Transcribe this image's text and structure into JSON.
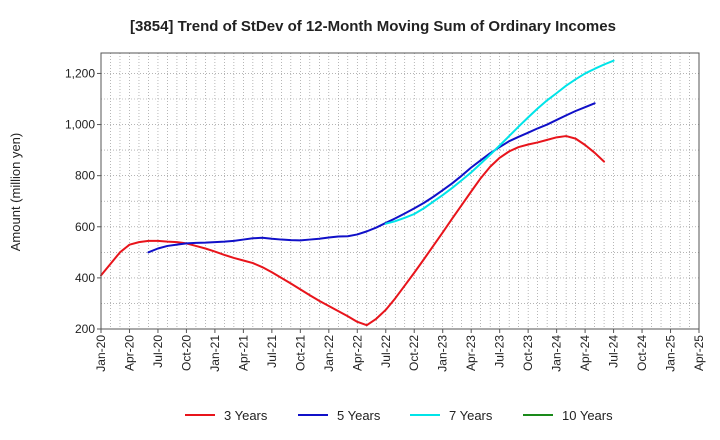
{
  "chart_data": {
    "type": "line",
    "title": "[3854]  Trend of StDev of 12-Month Moving Sum of Ordinary Incomes",
    "xlabel": "",
    "ylabel": "Amount (million yen)",
    "ylim": [
      200,
      1280
    ],
    "yticks": [
      200,
      400,
      600,
      800,
      "1,000",
      "1,200"
    ],
    "ytick_values": [
      200,
      400,
      600,
      800,
      1000,
      1200
    ],
    "x_start": "Jan-20",
    "x_end": "Apr-25",
    "x_months_span": 63,
    "xtick_labels": [
      "Jan-20",
      "Apr-20",
      "Jul-20",
      "Oct-20",
      "Jan-21",
      "Apr-21",
      "Jul-21",
      "Oct-21",
      "Jan-22",
      "Apr-22",
      "Jul-22",
      "Oct-22",
      "Jan-23",
      "Apr-23",
      "Jul-23",
      "Oct-23",
      "Jan-24",
      "Apr-24",
      "Jul-24",
      "Oct-24",
      "Jan-25",
      "Apr-25"
    ],
    "grid": true,
    "legend_position": "bottom",
    "series": [
      {
        "name": "3 Years",
        "color": "#e8141b",
        "start_month": 0,
        "values": [
          410,
          455,
          500,
          530,
          540,
          545,
          545,
          542,
          540,
          535,
          525,
          515,
          503,
          490,
          478,
          468,
          458,
          442,
          422,
          400,
          378,
          355,
          332,
          310,
          290,
          270,
          250,
          228,
          215,
          240,
          275,
          320,
          370,
          420,
          472,
          525,
          578,
          632,
          685,
          738,
          790,
          835,
          870,
          895,
          912,
          922,
          930,
          940,
          950,
          955,
          945,
          920,
          890,
          855
        ]
      },
      {
        "name": "5 Years",
        "color": "#1010c8",
        "start_month": 5,
        "values": [
          500,
          515,
          525,
          530,
          535,
          537,
          538,
          540,
          542,
          545,
          550,
          555,
          557,
          553,
          550,
          548,
          547,
          550,
          553,
          558,
          562,
          563,
          570,
          582,
          597,
          615,
          633,
          652,
          672,
          693,
          717,
          743,
          770,
          800,
          832,
          860,
          888,
          912,
          935,
          952,
          968,
          985,
          1000,
          1018,
          1036,
          1053,
          1068,
          1083
        ]
      },
      {
        "name": "7 Years",
        "color": "#00e4e8",
        "start_month": 30,
        "values": [
          612,
          622,
          635,
          650,
          672,
          698,
          724,
          752,
          782,
          813,
          847,
          882,
          918,
          955,
          992,
          1028,
          1063,
          1095,
          1123,
          1152,
          1177,
          1200,
          1218,
          1235,
          1250
        ]
      },
      {
        "name": "10 Years",
        "color": "#1a8a1a",
        "start_month": 0,
        "values": []
      }
    ]
  }
}
